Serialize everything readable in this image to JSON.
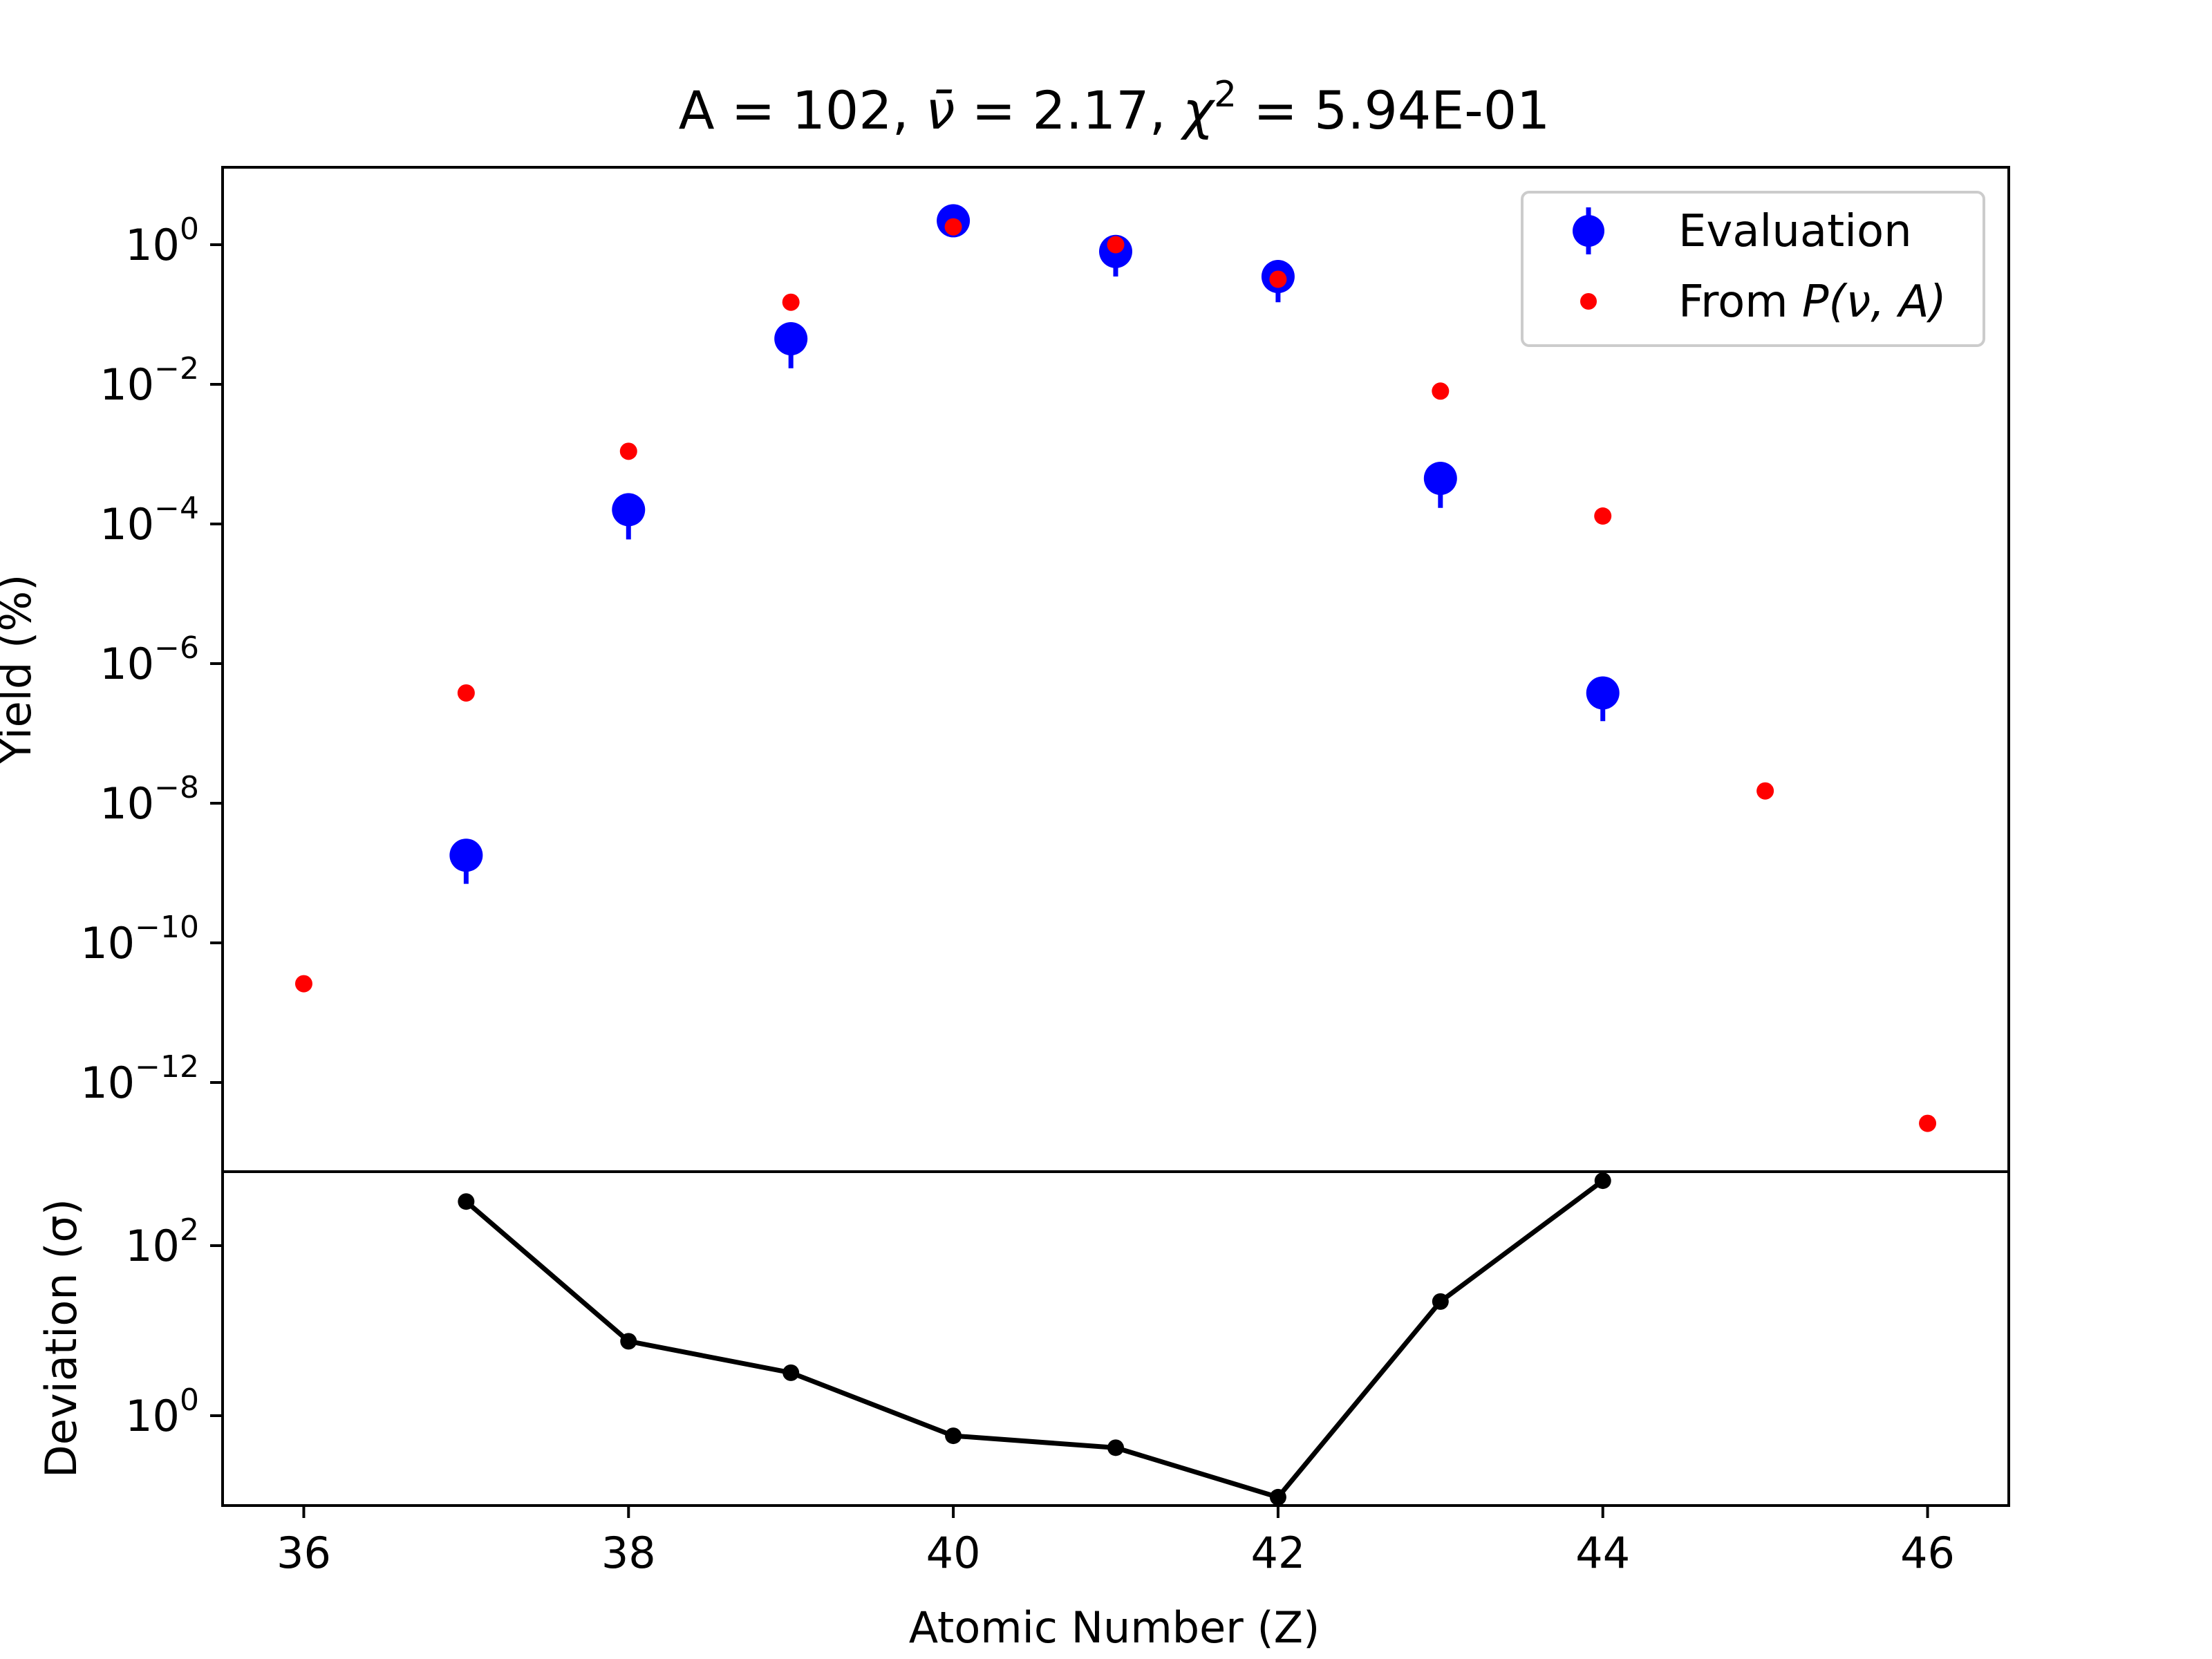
{
  "chart_data": [
    {
      "type": "scatter",
      "title": {
        "prefix": "A = 102, ",
        "nu_symbol": "ν̄",
        "nu_part": " = 2.17, ",
        "chi_symbol": "χ",
        "chi_exponent": "2",
        "chi_part": " = 5.94E-01"
      },
      "ylabel": "Yield (%)",
      "yscale": "log",
      "ylim": [
        1e-13,
        10
      ],
      "xlim": [
        35.5,
        46.5
      ],
      "y_ticks": [
        {
          "value": 1,
          "base": "10",
          "exp": "0"
        },
        {
          "value": 0.01,
          "base": "10",
          "exp": "−2"
        },
        {
          "value": 0.0001,
          "base": "10",
          "exp": "−4"
        },
        {
          "value": 1e-06,
          "base": "10",
          "exp": "−6"
        },
        {
          "value": 1e-08,
          "base": "10",
          "exp": "−8"
        },
        {
          "value": 1e-10,
          "base": "10",
          "exp": "−10"
        },
        {
          "value": 1e-12,
          "base": "10",
          "exp": "−12"
        }
      ],
      "legend": {
        "placement": "top-right",
        "evaluation_label": "Evaluation",
        "model_label_prefix": "From ",
        "model_label_math": "P(ν, A)"
      },
      "series": [
        {
          "name": "Evaluation",
          "color": "#0000ff",
          "marker": "large circle with error bars",
          "x": [
            37,
            38,
            39,
            40,
            41,
            42,
            43,
            44
          ],
          "y": [
            1.8e-09,
            0.00016,
            0.045,
            2.2,
            0.8,
            0.35,
            0.00045,
            3.8e-07
          ],
          "yerr_low": [
            1.1e-09,
            0.0001,
            0.028,
            0.3,
            0.45,
            0.2,
            0.00028,
            2.3e-07
          ],
          "yerr_high": [
            0,
            0,
            0,
            0.3,
            0.3,
            0.1,
            0,
            0
          ]
        },
        {
          "name": "From P(ν, A)",
          "color": "#ff0000",
          "marker": "small circle",
          "x": [
            36,
            37,
            38,
            39,
            40,
            41,
            42,
            43,
            44,
            45,
            46
          ],
          "y": [
            2.6e-11,
            3.8e-07,
            0.0011,
            0.15,
            1.8,
            1.0,
            0.32,
            0.008,
            0.00013,
            1.5e-08,
            2.6e-13
          ]
        }
      ]
    },
    {
      "type": "line",
      "ylabel": "Deviation (σ)",
      "yscale": "log",
      "xlabel": "Atomic Number (Z)",
      "xlim": [
        35.5,
        46.5
      ],
      "x_ticks": [
        "36",
        "38",
        "40",
        "42",
        "44",
        "46"
      ],
      "y_ticks": [
        {
          "value": 1,
          "base": "10",
          "exp": "0"
        },
        {
          "value": 100,
          "base": "10",
          "exp": "2"
        }
      ],
      "series": [
        {
          "color": "#000000",
          "x": [
            37,
            38,
            39,
            40,
            41,
            42,
            43,
            44
          ],
          "y": [
            330,
            7.5,
            3.2,
            0.58,
            0.42,
            0.11,
            22,
            580
          ]
        }
      ]
    }
  ]
}
